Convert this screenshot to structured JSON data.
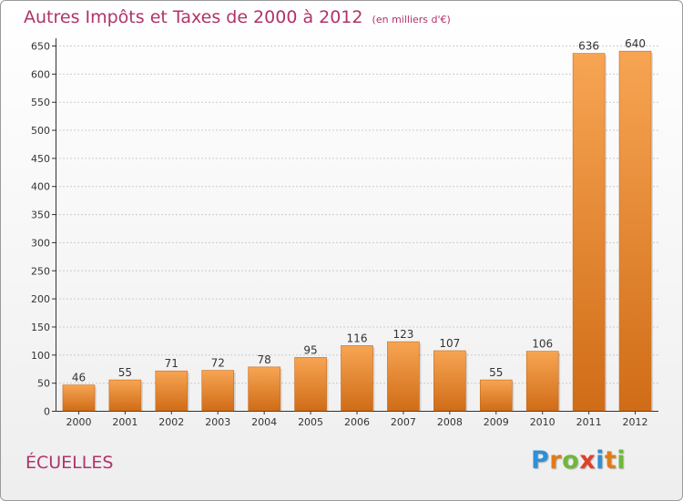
{
  "title": "Autres Impôts et Taxes de 2000 à 2012",
  "subtitle": "(en milliers d'€)",
  "commune": "ÉCUELLES",
  "logo": {
    "text": "Proxiti",
    "letters": [
      "P",
      "r",
      "o",
      "x",
      "i",
      "t",
      "i"
    ],
    "colors": [
      "#2f8fd8",
      "#e07b1a",
      "#6fb83a",
      "#e0402a",
      "#2f8fd8",
      "#e07b1a",
      "#6fb83a"
    ]
  },
  "colors": {
    "title": "#b0336a",
    "bar_light": "#f7a553",
    "bar_dark": "#d06c17",
    "grid": "#cccccc",
    "axis": "#333333"
  },
  "chart_data": {
    "type": "bar",
    "categories": [
      "2000",
      "2001",
      "2002",
      "2003",
      "2004",
      "2005",
      "2006",
      "2007",
      "2008",
      "2009",
      "2010",
      "2011",
      "2012"
    ],
    "values": [
      46,
      55,
      71,
      72,
      78,
      95,
      116,
      123,
      107,
      55,
      106,
      636,
      640
    ],
    "ylim": [
      0,
      650
    ],
    "yticks": [
      0,
      50,
      100,
      150,
      200,
      250,
      300,
      350,
      400,
      450,
      500,
      550,
      600,
      650
    ],
    "grid": true
  }
}
